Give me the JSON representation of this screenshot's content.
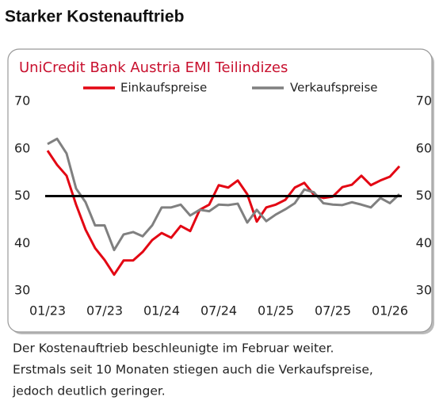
{
  "heading": "Starker Kostenauftrieb",
  "caption": [
    "Der Kostenauftrieb beschleunigte im Februar weiter.",
    "Erstmals seit 10 Monaten stiegen auch die Verkaufspreise,",
    "jedoch deutlich geringer."
  ],
  "chart_data": {
    "type": "line",
    "title": "UniCredit Bank Austria EMI Teilindizes",
    "categories": [
      "01/23",
      null,
      null,
      null,
      null,
      null,
      "07/23",
      null,
      null,
      null,
      null,
      null,
      "01/24",
      null,
      null,
      null,
      null,
      null,
      "07/24",
      null,
      null,
      null,
      null,
      null,
      "01/25",
      null,
      null,
      null,
      null,
      null,
      "07/25",
      null,
      null,
      null,
      null,
      null,
      "01/26",
      null
    ],
    "series": [
      {
        "name": "Einkaufspreise",
        "color": "#e30613",
        "values": [
          59.6,
          56.6,
          54.3,
          48.2,
          42.9,
          39,
          36.5,
          33.4,
          36.4,
          36.4,
          38.2,
          40.7,
          42.2,
          41.2,
          43.7,
          42.6,
          47.1,
          48.2,
          52.3,
          51.8,
          53.3,
          50.4,
          44.6,
          47.6,
          48.2,
          49.2,
          51.8,
          52.8,
          50.3,
          49.6,
          49.9,
          51.9,
          52.4,
          54.3,
          52.3,
          53.3,
          54.1,
          56.3
        ]
      },
      {
        "name": "Verkaufspreise",
        "color": "#808080",
        "values": [
          61,
          62.1,
          59,
          51.6,
          48.7,
          43.8,
          43.8,
          38.6,
          41.9,
          42.4,
          41.5,
          43.8,
          47.6,
          47.6,
          48.2,
          45.9,
          47.1,
          46.8,
          48.2,
          48.1,
          48.4,
          44.4,
          47.1,
          44.7,
          46.1,
          47.2,
          48.5,
          51.4,
          50.8,
          48.5,
          48.2,
          48.1,
          48.7,
          48.2,
          47.6,
          49.6,
          48.5,
          50.4
        ]
      }
    ],
    "ylim": [
      30,
      70
    ],
    "yticks": [
      30,
      40,
      50,
      60,
      70
    ],
    "y2lim": [
      30,
      70
    ],
    "y2ticks": [
      30,
      40,
      50,
      60,
      70
    ],
    "reference_line": 50,
    "reference_color": "#000000",
    "legend": "top",
    "grid": false
  }
}
